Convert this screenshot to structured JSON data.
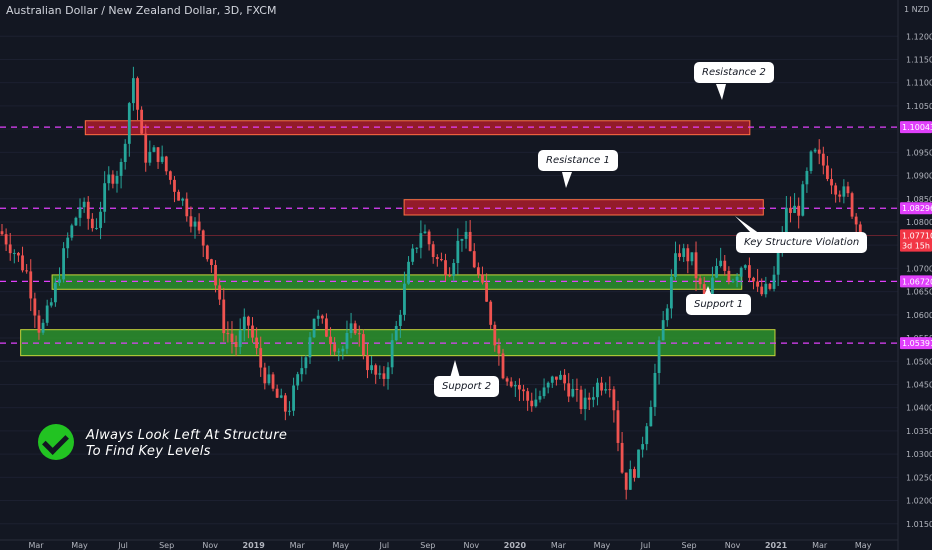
{
  "header": {
    "title": "Australian Dollar / New Zealand Dollar, 3D, FXCM",
    "currency": "1 NZD"
  },
  "chart_data": {
    "type": "candlestick",
    "title": "Australian Dollar / New Zealand Dollar, 3D, FXCM",
    "ylim": [
      1.0115,
      1.1235
    ],
    "y_ticks": [
      "1.12000",
      "1.11500",
      "1.11000",
      "1.10500",
      "1.10000",
      "1.09500",
      "1.09000",
      "1.08500",
      "1.08000",
      "1.07500",
      "1.07000",
      "1.06500",
      "1.06000",
      "1.05500",
      "1.05000",
      "1.04500",
      "1.04000",
      "1.03500",
      "1.03000",
      "1.02500",
      "1.02000",
      "1.01500"
    ],
    "x_ticks": [
      "Mar",
      "May",
      "Jul",
      "Sep",
      "Nov",
      "2019",
      "Mar",
      "May",
      "Jul",
      "Sep",
      "Nov",
      "2020",
      "Mar",
      "May",
      "Jul",
      "Sep",
      "Nov",
      "2021",
      "Mar",
      "May"
    ],
    "price_labels": [
      {
        "text": "1.10043",
        "value": 1.10043,
        "color": "#e040fb"
      },
      {
        "text": "1.08296",
        "value": 1.08296,
        "color": "#e040fb"
      },
      {
        "text": "1.07710",
        "value": 1.0771,
        "color": "#f23645"
      },
      {
        "text": "3d 15h",
        "value": 1.0749,
        "color": "#f23645"
      },
      {
        "text": "1.06720",
        "value": 1.0672,
        "color": "#e040fb"
      },
      {
        "text": "1.05391",
        "value": 1.05391,
        "color": "#e040fb"
      }
    ],
    "levels": [
      1.10043,
      1.08296,
      1.0672,
      1.05391
    ],
    "zones": [
      {
        "kind": "resistance",
        "x_from": 0.095,
        "x_to": 0.835,
        "y_low": 1.0988,
        "y_high": 1.1018
      },
      {
        "kind": "resistance",
        "x_from": 0.45,
        "x_to": 0.85,
        "y_low": 1.0815,
        "y_high": 1.0848
      },
      {
        "kind": "support",
        "x_from": 0.058,
        "x_to": 0.826,
        "y_low": 1.0655,
        "y_high": 1.0686
      },
      {
        "kind": "support",
        "x_from": 0.023,
        "x_to": 0.863,
        "y_low": 1.0512,
        "y_high": 1.0568
      }
    ],
    "current_price": 1.0771,
    "anchors": [
      [
        0.0,
        1.078
      ],
      [
        0.015,
        1.074
      ],
      [
        0.03,
        1.069
      ],
      [
        0.045,
        1.056
      ],
      [
        0.058,
        1.063
      ],
      [
        0.075,
        1.076
      ],
      [
        0.09,
        1.084
      ],
      [
        0.105,
        1.078
      ],
      [
        0.12,
        1.089
      ],
      [
        0.135,
        1.092
      ],
      [
        0.148,
        1.112
      ],
      [
        0.16,
        1.094
      ],
      [
        0.175,
        1.095
      ],
      [
        0.19,
        1.089
      ],
      [
        0.205,
        1.084
      ],
      [
        0.22,
        1.078
      ],
      [
        0.235,
        1.072
      ],
      [
        0.248,
        1.058
      ],
      [
        0.262,
        1.053
      ],
      [
        0.275,
        1.059
      ],
      [
        0.29,
        1.049
      ],
      [
        0.305,
        1.043
      ],
      [
        0.32,
        1.039
      ],
      [
        0.335,
        1.048
      ],
      [
        0.35,
        1.06
      ],
      [
        0.365,
        1.056
      ],
      [
        0.38,
        1.052
      ],
      [
        0.395,
        1.058
      ],
      [
        0.41,
        1.049
      ],
      [
        0.425,
        1.045
      ],
      [
        0.44,
        1.056
      ],
      [
        0.455,
        1.07
      ],
      [
        0.47,
        1.079
      ],
      [
        0.485,
        1.072
      ],
      [
        0.5,
        1.07
      ],
      [
        0.515,
        1.078
      ],
      [
        0.53,
        1.07
      ],
      [
        0.545,
        1.06
      ],
      [
        0.56,
        1.048
      ],
      [
        0.575,
        1.045
      ],
      [
        0.59,
        1.041
      ],
      [
        0.605,
        1.043
      ],
      [
        0.62,
        1.047
      ],
      [
        0.635,
        1.044
      ],
      [
        0.65,
        1.04
      ],
      [
        0.665,
        1.045
      ],
      [
        0.68,
        1.046
      ],
      [
        0.695,
        1.023
      ],
      [
        0.71,
        1.028
      ],
      [
        0.725,
        1.042
      ],
      [
        0.74,
        1.06
      ],
      [
        0.755,
        1.074
      ],
      [
        0.77,
        1.072
      ],
      [
        0.785,
        1.062
      ],
      [
        0.8,
        1.071
      ],
      [
        0.815,
        1.068
      ],
      [
        0.83,
        1.072
      ],
      [
        0.845,
        1.064
      ],
      [
        0.86,
        1.066
      ],
      [
        0.875,
        1.082
      ],
      [
        0.89,
        1.083
      ],
      [
        0.905,
        1.095
      ],
      [
        0.918,
        1.092
      ],
      [
        0.93,
        1.088
      ],
      [
        0.945,
        1.085
      ],
      [
        0.958,
        1.0771
      ]
    ],
    "plot_x_end": 0.958
  },
  "annotations": {
    "resistance_2": "Resistance 2",
    "resistance_1": "Resistance 1",
    "key_violation": "Key Structure Violation",
    "support_1": "Support 1",
    "support_2": "Support 2"
  },
  "note": {
    "line1": "Always Look Left At Structure",
    "line2": "To Find Key Levels",
    "icon": "check-circle-icon"
  },
  "colors": {
    "background": "#131722",
    "bull": "#26a69a",
    "bear": "#ef5350",
    "level": "#e040fb",
    "resistance_zone": "#b71c2c",
    "support_zone": "#2e9e2e"
  }
}
